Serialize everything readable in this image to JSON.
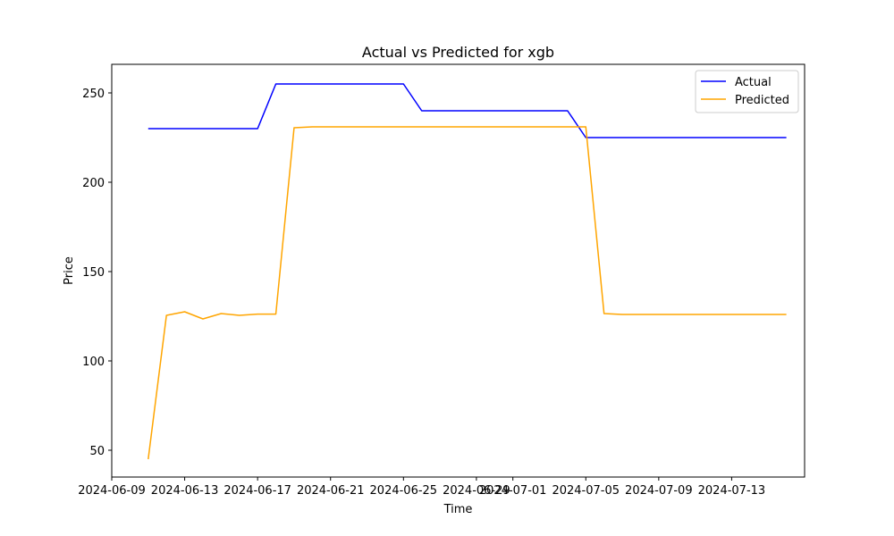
{
  "chart_data": {
    "type": "line",
    "title": "Actual vs Predicted for xgb",
    "xlabel": "Time",
    "ylabel": "Price",
    "x": [
      "2024-06-11",
      "2024-06-12",
      "2024-06-13",
      "2024-06-14",
      "2024-06-15",
      "2024-06-16",
      "2024-06-17",
      "2024-06-18",
      "2024-06-19",
      "2024-06-20",
      "2024-06-21",
      "2024-06-22",
      "2024-06-23",
      "2024-06-24",
      "2024-06-25",
      "2024-06-26",
      "2024-06-27",
      "2024-06-28",
      "2024-06-29",
      "2024-06-30",
      "2024-07-01",
      "2024-07-02",
      "2024-07-03",
      "2024-07-04",
      "2024-07-05",
      "2024-07-06",
      "2024-07-07",
      "2024-07-08",
      "2024-07-09",
      "2024-07-10",
      "2024-07-11",
      "2024-07-12",
      "2024-07-13",
      "2024-07-14",
      "2024-07-15",
      "2024-07-16"
    ],
    "series": [
      {
        "name": "Actual",
        "color": "#0000ff",
        "values": [
          230,
          230,
          230,
          230,
          230,
          230,
          230,
          255,
          255,
          255,
          255,
          255,
          255,
          255,
          255,
          240,
          240,
          240,
          240,
          240,
          240,
          240,
          240,
          240,
          225,
          225,
          225,
          225,
          225,
          225,
          225,
          225,
          225,
          225,
          225,
          225
        ]
      },
      {
        "name": "Predicted",
        "color": "#ffa500",
        "values": [
          45,
          125.5,
          127.5,
          123.5,
          126.5,
          125.5,
          126.2,
          126.2,
          230.5,
          231,
          231,
          231,
          231,
          231,
          231,
          231,
          231,
          231,
          231,
          231,
          231,
          231,
          231,
          231,
          231,
          126.5,
          126,
          126,
          126,
          126,
          126,
          126,
          126,
          126,
          126,
          126
        ]
      }
    ],
    "xlim": [
      "2024-06-09",
      "2024-07-17"
    ],
    "ylim": [
      35,
      266
    ],
    "x_ticks": [
      "2024-06-09",
      "2024-06-13",
      "2024-06-17",
      "2024-06-21",
      "2024-06-25",
      "2024-06-29",
      "2024-07-01",
      "2024-07-05",
      "2024-07-09",
      "2024-07-13"
    ],
    "y_ticks": [
      50,
      100,
      150,
      200,
      250
    ],
    "grid": false,
    "legend_position": "top-right"
  }
}
